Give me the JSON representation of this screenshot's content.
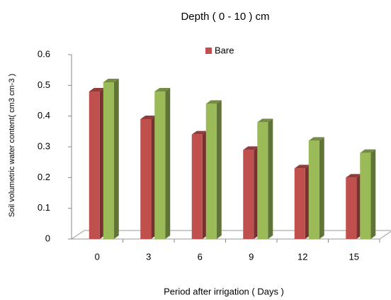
{
  "chart_data": {
    "type": "bar3d",
    "title": "Depth ( 0 - 10 ) cm",
    "x_label": "Period after irrigation ( Days )",
    "y_label": "Soil volumetric  water content( cm3 cm-3 )",
    "categories": [
      "0",
      "3",
      "6",
      "9",
      "12",
      "15"
    ],
    "series": [
      {
        "name": "Bare",
        "color": "#c0504d",
        "values": [
          0.48,
          0.39,
          0.34,
          0.29,
          0.23,
          0.2
        ]
      },
      {
        "color": "#9bbb59",
        "values": [
          0.51,
          0.48,
          0.44,
          0.38,
          0.32,
          0.28
        ]
      }
    ],
    "ylim": [
      0,
      0.6
    ],
    "yticks": [
      0,
      0.1,
      0.2,
      0.3,
      0.4,
      0.5,
      0.6
    ],
    "grid": false,
    "legend": "top"
  }
}
